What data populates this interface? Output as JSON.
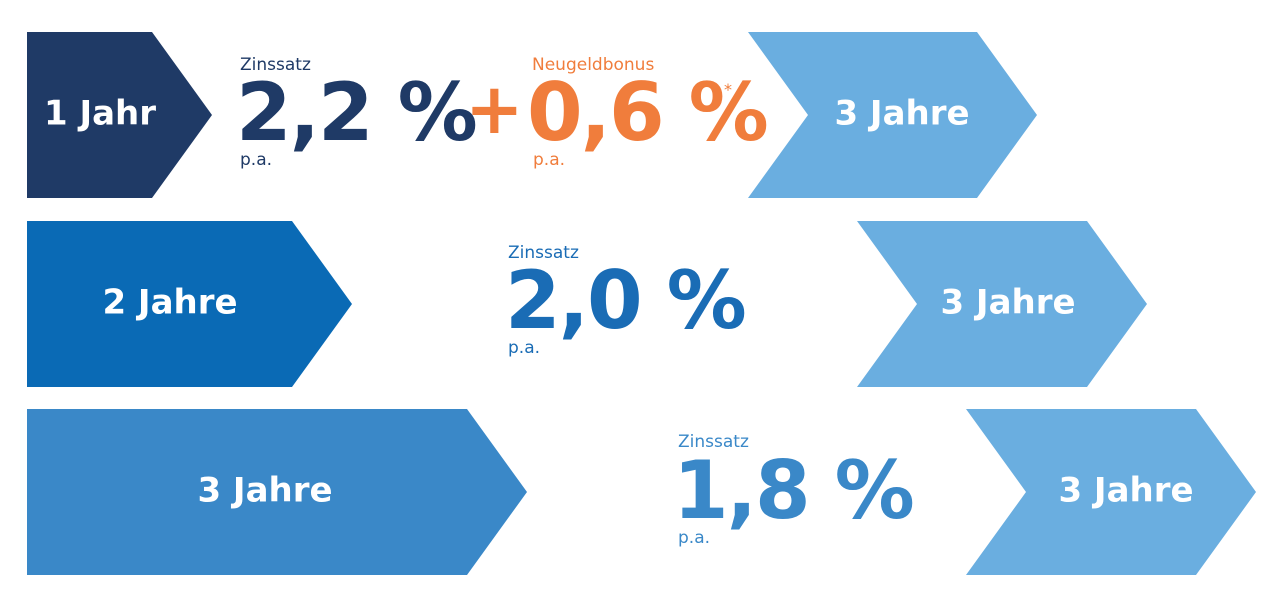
{
  "rows": [
    {
      "term": "1 Jahr",
      "rate": {
        "label": "Zinssatz",
        "value": "2,2 %",
        "unit": "p.a."
      },
      "bonus": {
        "plus": "+",
        "label": "Neugeldbonus",
        "value": "0,6 %",
        "asterisk": "*",
        "unit": "p.a."
      },
      "target": "3 Jahre"
    },
    {
      "term": "2 Jahre",
      "rate": {
        "label": "Zinssatz",
        "value": "2,0 %",
        "unit": "p.a."
      },
      "target": "3 Jahre"
    },
    {
      "term": "3 Jahre",
      "rate": {
        "label": "Zinssatz",
        "value": "1,8 %",
        "unit": "p.a."
      },
      "target": "3 Jahre"
    }
  ]
}
